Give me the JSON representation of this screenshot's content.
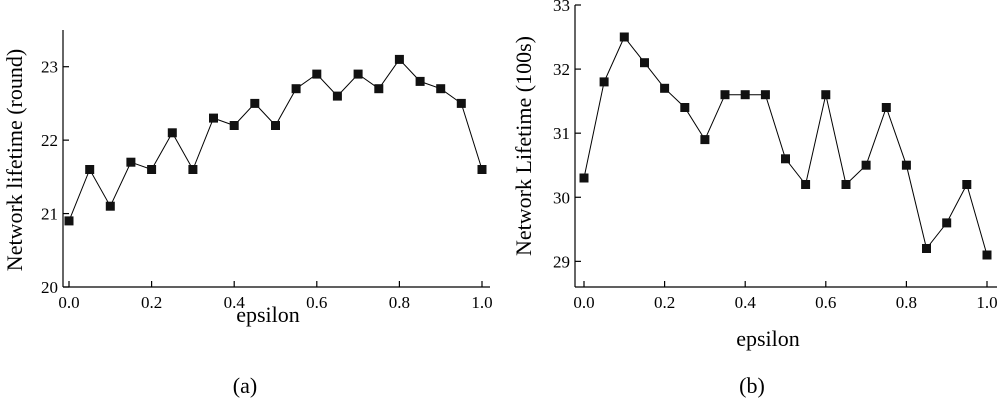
{
  "chart_data": [
    {
      "type": "line",
      "caption": "(a)",
      "xlabel": "epsilon",
      "ylabel": "Network lifetime (round)",
      "xlim": [
        0.0,
        1.0
      ],
      "ylim": [
        20,
        23.5
      ],
      "xticks": [
        "0.0",
        "0.2",
        "0.4",
        "0.6",
        "0.8",
        "1.0"
      ],
      "yticks": [
        "20",
        "21",
        "22",
        "23"
      ],
      "marker": "square",
      "grid": false,
      "x": [
        0.0,
        0.05,
        0.1,
        0.15,
        0.2,
        0.25,
        0.3,
        0.35,
        0.4,
        0.45,
        0.5,
        0.55,
        0.6,
        0.65,
        0.7,
        0.75,
        0.8,
        0.85,
        0.9,
        0.95,
        1.0
      ],
      "values": [
        20.9,
        21.6,
        21.1,
        21.7,
        21.6,
        22.1,
        21.6,
        22.3,
        22.2,
        22.5,
        22.2,
        22.7,
        22.9,
        22.6,
        22.9,
        22.7,
        23.1,
        22.8,
        22.7,
        22.5,
        21.6
      ]
    },
    {
      "type": "line",
      "caption": "(b)",
      "xlabel": "epsilon",
      "ylabel": "Network Lifetime (100s)",
      "xlim": [
        0.0,
        1.0
      ],
      "ylim": [
        28.6,
        33.0
      ],
      "xticks": [
        "0.0",
        "0.2",
        "0.4",
        "0.6",
        "0.8",
        "1.0"
      ],
      "yticks": [
        "29",
        "30",
        "31",
        "32",
        "33"
      ],
      "marker": "square",
      "grid": false,
      "x": [
        0.0,
        0.05,
        0.1,
        0.15,
        0.2,
        0.25,
        0.3,
        0.35,
        0.4,
        0.45,
        0.5,
        0.55,
        0.6,
        0.65,
        0.7,
        0.75,
        0.8,
        0.85,
        0.9,
        0.95,
        1.0
      ],
      "values": [
        30.3,
        31.8,
        32.5,
        32.1,
        31.7,
        31.4,
        30.9,
        31.6,
        31.6,
        31.6,
        30.6,
        30.2,
        31.6,
        30.2,
        30.5,
        31.4,
        30.5,
        29.2,
        29.6,
        30.2,
        29.1
      ]
    }
  ]
}
